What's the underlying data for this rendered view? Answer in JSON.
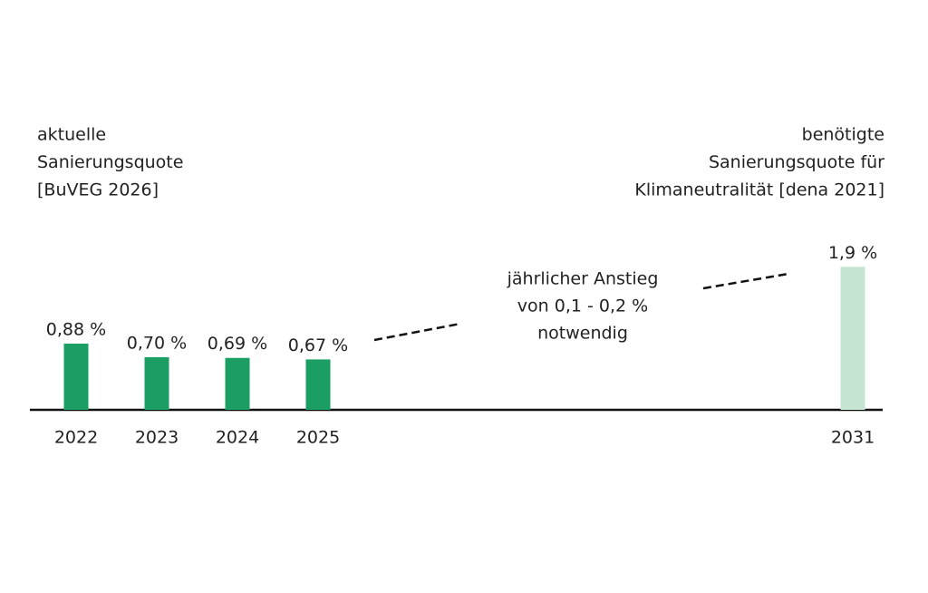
{
  "chart_data": {
    "type": "bar",
    "annotations": {
      "left": [
        "aktuelle",
        "Sanierungsquote",
        "[BuVEG 2026]"
      ],
      "right": [
        "benötigte",
        "Sanierungsquote für",
        "Klimaneutralität [dena 2021]"
      ],
      "middle": [
        "jährlicher Anstieg",
        "von 0,1 - 0,2 %",
        "notwendig"
      ]
    },
    "categories": [
      "2022",
      "2023",
      "2024",
      "2025",
      "2031"
    ],
    "values": [
      0.88,
      0.7,
      0.69,
      0.67,
      1.9
    ],
    "value_labels": [
      "0,88 %",
      "0,70 %",
      "0,69 %",
      "0,67 %",
      "1,9 %"
    ],
    "colors": [
      "#1a9e63",
      "#1a9e63",
      "#1a9e63",
      "#1a9e63",
      "#c6e4d2"
    ]
  }
}
